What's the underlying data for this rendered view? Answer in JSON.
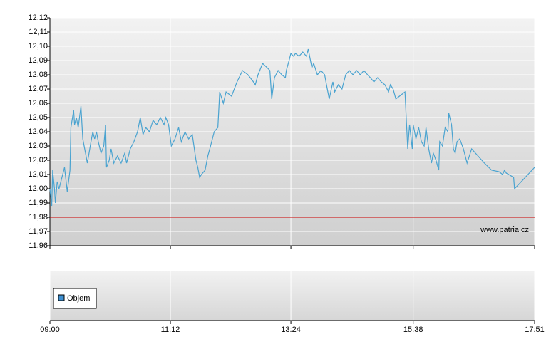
{
  "chart_data": {
    "type": "line",
    "x": [
      "09:00",
      "09:02",
      "09:03",
      "09:05",
      "09:06",
      "09:08",
      "09:10",
      "09:12",
      "09:16",
      "09:19",
      "09:22",
      "09:23",
      "09:26",
      "09:27",
      "09:29",
      "09:31",
      "09:34",
      "09:36",
      "09:39",
      "09:41",
      "09:45",
      "09:47",
      "09:49",
      "09:51",
      "09:53",
      "09:56",
      "09:59",
      "10:01",
      "10:02",
      "10:05",
      "10:07",
      "10:10",
      "10:14",
      "10:18",
      "10:22",
      "10:24",
      "10:28",
      "10:32",
      "10:36",
      "10:39",
      "10:42",
      "10:45",
      "10:49",
      "10:53",
      "10:57",
      "11:01",
      "11:05",
      "11:07",
      "11:10",
      "11:13",
      "11:17",
      "11:21",
      "11:24",
      "11:28",
      "11:32",
      "11:36",
      "11:40",
      "11:42",
      "11:44",
      "11:46",
      "11:50",
      "11:53",
      "11:56",
      "12:00",
      "12:04",
      "12:06",
      "12:10",
      "12:13",
      "12:19",
      "12:25",
      "12:31",
      "12:37",
      "12:43",
      "12:45",
      "12:48",
      "12:53",
      "12:58",
      "13:01",
      "13:03",
      "13:06",
      "13:10",
      "13:14",
      "13:18",
      "13:19",
      "13:22",
      "13:24",
      "13:27",
      "13:29",
      "13:33",
      "13:37",
      "13:41",
      "13:43",
      "13:47",
      "13:49",
      "13:53",
      "13:57",
      "14:01",
      "14:03",
      "14:06",
      "14:10",
      "14:12",
      "14:16",
      "14:20",
      "14:24",
      "14:28",
      "14:32",
      "14:36",
      "14:40",
      "14:44",
      "14:48",
      "14:51",
      "14:55",
      "14:59",
      "15:03",
      "15:07",
      "15:11",
      "15:13",
      "15:16",
      "15:19",
      "15:23",
      "15:29",
      "15:32",
      "15:34",
      "15:37",
      "15:38",
      "15:41",
      "15:44",
      "15:47",
      "15:50",
      "15:52",
      "15:55",
      "15:58",
      "16:00",
      "16:03",
      "16:06",
      "16:07",
      "16:10",
      "16:13",
      "16:16",
      "16:17",
      "16:20",
      "16:22",
      "16:24",
      "16:26",
      "16:29",
      "16:33",
      "16:37",
      "16:42",
      "16:49",
      "16:56",
      "17:04",
      "17:12",
      "17:16",
      "17:18",
      "17:20",
      "17:28",
      "17:29",
      "17:35",
      "17:51"
    ],
    "series": [
      {
        "color": "#4aa3d0",
        "values": [
          12.0,
          11.988,
          12.013,
          12.0,
          11.99,
          12.005,
          12.0,
          12.005,
          12.015,
          11.998,
          12.013,
          12.043,
          12.055,
          12.045,
          12.05,
          12.043,
          12.058,
          12.035,
          12.025,
          12.018,
          12.033,
          12.04,
          12.035,
          12.04,
          12.033,
          12.025,
          12.03,
          12.045,
          12.015,
          12.02,
          12.028,
          12.018,
          12.023,
          12.018,
          12.025,
          12.018,
          12.028,
          12.033,
          12.04,
          12.05,
          12.038,
          12.043,
          12.04,
          12.048,
          12.045,
          12.05,
          12.045,
          12.05,
          12.045,
          12.03,
          12.035,
          12.043,
          12.033,
          12.04,
          12.035,
          12.038,
          12.02,
          12.015,
          12.008,
          12.01,
          12.013,
          12.023,
          12.03,
          12.04,
          12.043,
          12.068,
          12.06,
          12.068,
          12.065,
          12.075,
          12.083,
          12.08,
          12.075,
          12.073,
          12.08,
          12.088,
          12.085,
          12.083,
          12.063,
          12.078,
          12.083,
          12.08,
          12.078,
          12.083,
          12.09,
          12.095,
          12.093,
          12.095,
          12.093,
          12.096,
          12.093,
          12.098,
          12.085,
          12.088,
          12.08,
          12.083,
          12.08,
          12.073,
          12.063,
          12.075,
          12.068,
          12.073,
          12.07,
          12.08,
          12.083,
          12.08,
          12.083,
          12.08,
          12.083,
          12.08,
          12.078,
          12.075,
          12.078,
          12.075,
          12.073,
          12.068,
          12.073,
          12.07,
          12.063,
          12.065,
          12.068,
          12.028,
          12.045,
          12.028,
          12.045,
          12.035,
          12.043,
          12.033,
          12.03,
          12.043,
          12.028,
          12.018,
          12.025,
          12.02,
          12.013,
          12.033,
          12.03,
          12.043,
          12.04,
          12.053,
          12.045,
          12.028,
          12.025,
          12.033,
          12.035,
          12.028,
          12.018,
          12.028,
          12.023,
          12.018,
          12.013,
          12.012,
          12.01,
          12.013,
          12.011,
          12.008,
          12.0,
          12.004,
          12.015
        ]
      }
    ],
    "xlim": [
      "09:00",
      "17:51"
    ],
    "xticks": [
      "09:00",
      "11:12",
      "13:24",
      "15:38",
      "17:51"
    ],
    "ylim": [
      11.96,
      12.12
    ],
    "yticks": [
      {
        "value": 11.96,
        "label": "11,96"
      },
      {
        "value": 11.97,
        "label": "11,97"
      },
      {
        "value": 11.98,
        "label": "11,98"
      },
      {
        "value": 11.99,
        "label": "11,99"
      },
      {
        "value": 12.0,
        "label": "12,00"
      },
      {
        "value": 12.01,
        "label": "12,01"
      },
      {
        "value": 12.02,
        "label": "12,02"
      },
      {
        "value": 12.03,
        "label": "12,03"
      },
      {
        "value": 12.04,
        "label": "12,04"
      },
      {
        "value": 12.05,
        "label": "12,05"
      },
      {
        "value": 12.06,
        "label": "12,06"
      },
      {
        "value": 12.07,
        "label": "12,07"
      },
      {
        "value": 12.08,
        "label": "12,08"
      },
      {
        "value": 12.09,
        "label": "12,09"
      },
      {
        "value": 12.1,
        "label": "12,10"
      },
      {
        "value": 12.11,
        "label": "12,11"
      },
      {
        "value": 12.12,
        "label": "12,12"
      }
    ],
    "grid": true,
    "reference_line": {
      "value": 11.98,
      "color": "#cc0000"
    },
    "watermark": "www.patria.cz",
    "volume_panel": {
      "legend": "Objem",
      "legend_color": "#3d8fd1"
    }
  }
}
